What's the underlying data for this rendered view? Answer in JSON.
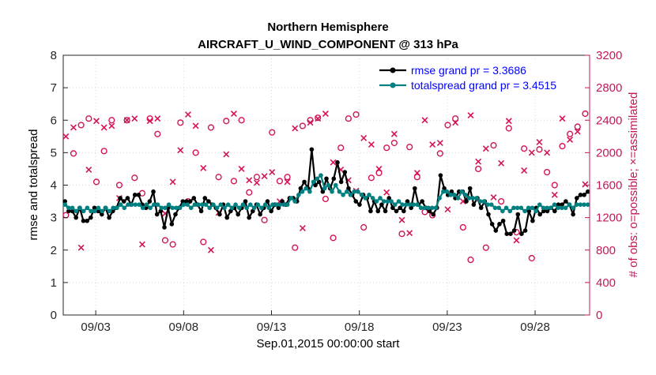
{
  "chart_data": {
    "type": "line",
    "title": "Northern Hemisphere",
    "subtitle": "AIRCRAFT_U_WIND_COMPONENT @ 313 hPa",
    "xlabel": "Sep.01,2015 00:00:00 start",
    "ylabel": "rmse and totalspread",
    "ylabel_right": "# of obs: o=possible; ×=assimilated",
    "x_tick_labels": [
      "09/03",
      "09/08",
      "09/13",
      "09/18",
      "09/23",
      "09/28"
    ],
    "x_tick_values": [
      2,
      7,
      12,
      17,
      22,
      27
    ],
    "xlim": [
      0.15,
      30.1
    ],
    "ylim": [
      0,
      8
    ],
    "yticks": [
      0,
      1,
      2,
      3,
      4,
      5,
      6,
      7,
      8
    ],
    "ylim_right": [
      0,
      3200
    ],
    "yticks_right": [
      0,
      400,
      800,
      1200,
      1600,
      2000,
      2400,
      2800,
      3200
    ],
    "grid": true,
    "legend_position": "top-right",
    "series": [
      {
        "name": "rmse grand pr = 3.3686",
        "color": "#000000",
        "axis": "left",
        "values": [
          3.5,
          3.2,
          3.2,
          3.0,
          3.3,
          2.9,
          2.9,
          3.0,
          3.3,
          3.2,
          3.1,
          3.3,
          3.0,
          3.2,
          3.3,
          3.6,
          3.5,
          3.6,
          3.4,
          3.7,
          3.7,
          3.4,
          3.3,
          3.5,
          3.8,
          3.1,
          3.2,
          2.7,
          3.3,
          2.8,
          3.1,
          3.3,
          3.5,
          3.5,
          3.5,
          3.6,
          3.4,
          3.2,
          3.6,
          3.5,
          3.4,
          3.3,
          3.1,
          3.4,
          3.0,
          3.2,
          3.3,
          3.1,
          3.3,
          3.5,
          3.0,
          3.2,
          3.4,
          3.1,
          3.3,
          3.5,
          3.2,
          3.4,
          3.3,
          3.5,
          3.4,
          3.6,
          3.6,
          3.5,
          3.9,
          4.1,
          3.9,
          5.1,
          4.0,
          4.1,
          3.8,
          4.2,
          3.9,
          4.2,
          4.7,
          4.1,
          4.4,
          3.9,
          3.7,
          3.5,
          3.4,
          3.7,
          3.6,
          3.2,
          3.5,
          3.2,
          3.4,
          3.2,
          3.6,
          3.3,
          3.2,
          3.3,
          3.2,
          3.5,
          3.3,
          3.9,
          3.4,
          3.5,
          3.3,
          3.2,
          3.1,
          3.3,
          4.3,
          3.9,
          3.7,
          3.8,
          3.6,
          3.8,
          3.8,
          3.5,
          3.9,
          3.4,
          3.6,
          3.3,
          3.5,
          3.1,
          2.8,
          2.6,
          2.8,
          2.9,
          2.5,
          2.5,
          2.6,
          3.1,
          2.5,
          2.6,
          3.2,
          2.9,
          3.3,
          3.1,
          3.2,
          3.2,
          3.3,
          3.2,
          3.4,
          3.4,
          3.5,
          3.4,
          3.1,
          3.6,
          3.7,
          3.7,
          3.8
        ]
      },
      {
        "name": "totalspread grand pr = 3.4515",
        "color": "#008080",
        "axis": "left",
        "values": [
          3.4,
          3.3,
          3.3,
          3.2,
          3.3,
          3.2,
          3.3,
          3.2,
          3.2,
          3.3,
          3.2,
          3.3,
          3.2,
          3.3,
          3.3,
          3.4,
          3.3,
          3.4,
          3.4,
          3.4,
          3.4,
          3.3,
          3.4,
          3.3,
          3.4,
          3.4,
          3.3,
          3.3,
          3.4,
          3.3,
          3.3,
          3.3,
          3.4,
          3.4,
          3.3,
          3.4,
          3.4,
          3.4,
          3.4,
          3.3,
          3.4,
          3.3,
          3.4,
          3.3,
          3.4,
          3.3,
          3.4,
          3.3,
          3.4,
          3.3,
          3.4,
          3.3,
          3.4,
          3.3,
          3.4,
          3.3,
          3.4,
          3.4,
          3.4,
          3.4,
          3.4,
          3.6,
          3.5,
          3.7,
          3.8,
          3.9,
          3.8,
          4.1,
          4.2,
          4.3,
          3.9,
          4.0,
          3.8,
          4.0,
          3.8,
          3.7,
          3.8,
          3.7,
          3.8,
          3.8,
          3.7,
          3.6,
          3.7,
          3.6,
          3.5,
          3.6,
          3.5,
          3.5,
          3.5,
          3.4,
          3.5,
          3.4,
          3.4,
          3.4,
          3.4,
          3.4,
          3.3,
          3.3,
          3.3,
          3.3,
          3.3,
          3.6,
          3.8,
          3.8,
          3.7,
          3.7,
          3.6,
          3.8,
          3.7,
          3.6,
          3.6,
          3.6,
          3.5,
          3.5,
          3.4,
          3.4,
          3.3,
          3.3,
          3.2,
          3.3,
          3.2,
          3.3,
          3.3,
          3.3,
          3.2,
          3.3,
          3.3,
          3.2,
          3.4,
          3.3,
          3.3,
          3.3,
          3.4,
          3.3,
          3.3,
          3.3,
          3.4,
          3.3,
          3.4,
          3.4,
          3.4,
          3.4
        ]
      },
      {
        "name": "possible",
        "color": "#d4145a",
        "axis": "right",
        "marker": "o",
        "values": [
          1230,
          1990,
          2340,
          2420,
          1640,
          2020,
          2400,
          1600,
          2400,
          1690,
          1500,
          2420,
          2230,
          920,
          870,
          2370,
          1400,
          2000,
          900,
          2310,
          1700,
          2390,
          1650,
          2400,
          1510,
          1700,
          1170,
          2250,
          1650,
          1700,
          830,
          2330,
          2400,
          2430,
          1430,
          950,
          2060,
          2420,
          2470,
          1080,
          1690,
          1750,
          2060,
          2120,
          1000,
          2070,
          1700,
          1270,
          1230,
          1990,
          2340,
          2420,
          1080,
          680,
          1800,
          830,
          2090,
          1400,
          2300,
          1020,
          2050,
          700,
          2040,
          1760,
          1600,
          2080,
          2230,
          2320,
          2480
        ]
      },
      {
        "name": "assimilated",
        "color": "#d4145a",
        "axis": "right",
        "marker": "x",
        "values": [
          2200,
          2310,
          830,
          1790,
          2390,
          2310,
          2330,
          1440,
          2400,
          2420,
          870,
          2390,
          2420,
          1250,
          1640,
          2030,
          2470,
          2330,
          1810,
          800,
          1260,
          1980,
          2480,
          1800,
          1660,
          1630,
          1710,
          1760,
          1400,
          1640,
          2300,
          1070,
          2370,
          2420,
          2480,
          1880,
          1790,
          1660,
          1530,
          2180,
          2100,
          1800,
          1510,
          2230,
          1170,
          1010,
          1750,
          2400,
          2100,
          2120,
          1300,
          2370,
          1400,
          2460,
          1890,
          2050,
          1450,
          1870,
          2390,
          920,
          1780,
          2000,
          2130,
          2000,
          1480,
          2420,
          2160,
          2260,
          1610
        ]
      }
    ]
  }
}
